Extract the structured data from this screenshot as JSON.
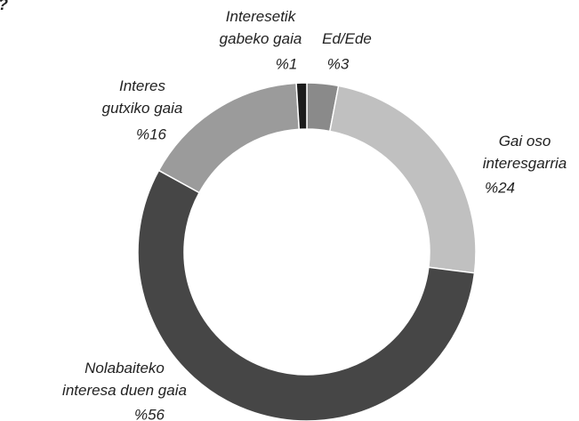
{
  "chart_data": {
    "type": "donut",
    "title": "?",
    "categories": [
      "Ed/Ede",
      "Gai oso\ninteresgarria",
      "Nolabaiteko\ninteresa duen gaia",
      "Interes\ngutxiko gaia",
      "Interesetik\ngabeko gaia"
    ],
    "values": [
      3,
      24,
      56,
      16,
      1
    ],
    "value_labels": [
      "%3",
      "%24",
      "%56",
      "%16",
      "%1"
    ],
    "colors": [
      "#8a8a8a",
      "#c0c0c0",
      "#464646",
      "#9b9b9b",
      "#1c1c1c"
    ]
  }
}
